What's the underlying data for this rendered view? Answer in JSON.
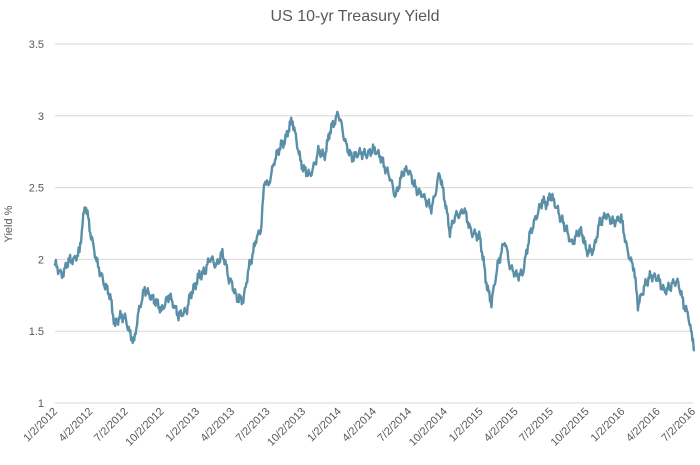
{
  "chart_data": {
    "type": "line",
    "title": "US 10-yr Treasury Yield",
    "xlabel": "",
    "ylabel": "Yield %",
    "ylim": [
      1,
      3.5
    ],
    "yticks": [
      "1",
      "1.5",
      "2",
      "2.5",
      "3",
      "3.5"
    ],
    "xtick_labels": [
      "1/2/2012",
      "4/2/2012",
      "7/2/2012",
      "10/2/2012",
      "1/2/2013",
      "4/2/2013",
      "7/2/2013",
      "10/2/2013",
      "1/2/2014",
      "4/2/2014",
      "7/2/2014",
      "10/2/2014",
      "1/2/2015",
      "4/2/2015",
      "7/2/2015",
      "10/2/2015",
      "1/2/2016",
      "4/2/2016",
      "7/2/2016"
    ],
    "grid": true,
    "legend": "none",
    "line_color": "#5b8fa8",
    "series": [
      {
        "x": [
          "2012-01-02",
          "2012-01-20",
          "2012-02-06",
          "2012-02-20",
          "2012-03-05",
          "2012-03-15",
          "2012-03-20",
          "2012-04-02",
          "2012-04-20",
          "2012-05-10",
          "2012-05-25",
          "2012-06-05",
          "2012-06-20",
          "2012-07-02",
          "2012-07-12",
          "2012-07-24",
          "2012-08-06",
          "2012-08-20",
          "2012-09-05",
          "2012-09-17",
          "2012-10-02",
          "2012-10-22",
          "2012-11-15",
          "2012-12-05",
          "2012-12-20",
          "2013-01-02",
          "2013-01-15",
          "2013-02-05",
          "2013-02-20",
          "2013-03-08",
          "2013-03-25",
          "2013-04-02",
          "2013-04-15",
          "2013-05-01",
          "2013-05-15",
          "2013-06-03",
          "2013-06-15",
          "2013-06-25",
          "2013-07-05",
          "2013-07-20",
          "2013-08-10",
          "2013-08-25",
          "2013-09-05",
          "2013-09-25",
          "2013-10-02",
          "2013-10-20",
          "2013-11-10",
          "2013-11-25",
          "2013-12-10",
          "2013-12-31",
          "2014-01-15",
          "2014-02-05",
          "2014-02-25",
          "2014-03-15",
          "2014-04-02",
          "2014-04-20",
          "2014-05-15",
          "2014-05-28",
          "2014-06-15",
          "2014-07-02",
          "2014-07-20",
          "2014-08-10",
          "2014-08-28",
          "2014-09-18",
          "2014-10-02",
          "2014-10-15",
          "2014-10-30",
          "2014-11-20",
          "2014-12-10",
          "2014-12-31",
          "2015-01-15",
          "2015-01-30",
          "2015-02-15",
          "2015-03-05",
          "2015-03-20",
          "2015-04-02",
          "2015-04-20",
          "2015-05-10",
          "2015-05-25",
          "2015-06-10",
          "2015-06-25",
          "2015-07-02",
          "2015-07-20",
          "2015-08-10",
          "2015-08-24",
          "2015-09-10",
          "2015-09-25",
          "2015-10-02",
          "2015-10-20",
          "2015-11-05",
          "2015-11-20",
          "2015-12-10",
          "2015-12-30",
          "2016-01-15",
          "2016-02-01",
          "2016-02-11",
          "2016-02-25",
          "2016-03-15",
          "2016-04-02",
          "2016-04-20",
          "2016-05-10",
          "2016-05-25",
          "2016-06-08",
          "2016-06-20",
          "2016-06-27",
          "2016-07-02",
          "2016-07-06"
        ],
        "values": [
          1.97,
          1.9,
          1.98,
          1.99,
          2.05,
          2.3,
          2.38,
          2.2,
          1.98,
          1.82,
          1.72,
          1.53,
          1.62,
          1.6,
          1.5,
          1.43,
          1.65,
          1.8,
          1.75,
          1.72,
          1.63,
          1.75,
          1.62,
          1.65,
          1.77,
          1.86,
          1.9,
          2.0,
          1.97,
          2.05,
          1.86,
          1.84,
          1.72,
          1.7,
          1.93,
          2.15,
          2.2,
          2.55,
          2.5,
          2.7,
          2.8,
          2.9,
          2.97,
          2.7,
          2.62,
          2.58,
          2.75,
          2.72,
          2.88,
          3.03,
          2.85,
          2.7,
          2.73,
          2.72,
          2.77,
          2.72,
          2.55,
          2.45,
          2.6,
          2.62,
          2.5,
          2.42,
          2.35,
          2.6,
          2.4,
          2.2,
          2.3,
          2.35,
          2.17,
          2.17,
          1.86,
          1.7,
          1.95,
          2.12,
          1.95,
          1.88,
          1.9,
          2.2,
          2.28,
          2.4,
          2.4,
          2.45,
          2.35,
          2.2,
          2.1,
          2.2,
          2.15,
          2.05,
          2.05,
          2.25,
          2.32,
          2.25,
          2.28,
          2.05,
          1.95,
          1.68,
          1.78,
          1.9,
          1.88,
          1.78,
          1.82,
          1.85,
          1.7,
          1.62,
          1.48,
          1.45,
          1.37
        ]
      }
    ]
  }
}
